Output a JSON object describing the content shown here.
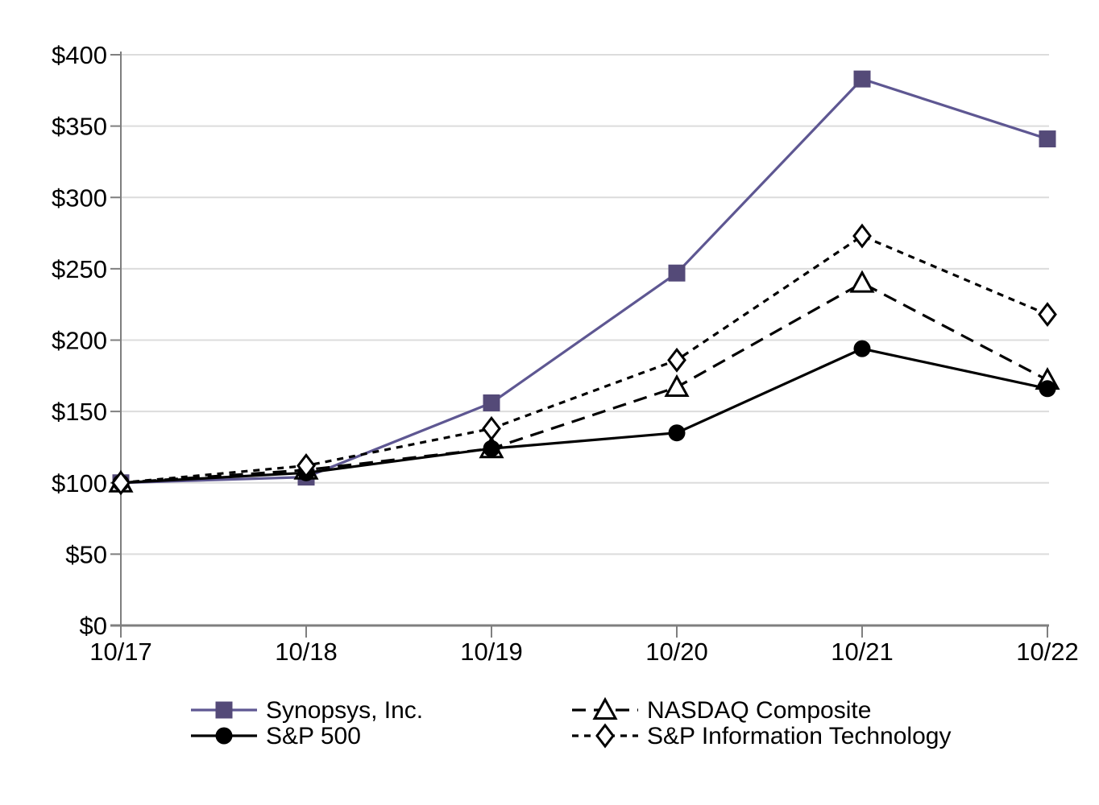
{
  "chart_data": {
    "type": "line",
    "title": "",
    "xlabel": "",
    "ylabel": "",
    "categories": [
      "10/17",
      "10/18",
      "10/19",
      "10/20",
      "10/21",
      "10/22"
    ],
    "series": [
      {
        "name": "Synopsys, Inc.",
        "values": [
          100,
          104,
          156,
          247,
          383,
          341
        ],
        "line_color": "#5e5792",
        "marker": "square",
        "marker_fill": "#544a78",
        "dash": "solid"
      },
      {
        "name": "NASDAQ Composite",
        "values": [
          100,
          109,
          124,
          167,
          240,
          172
        ],
        "line_color": "#000000",
        "marker": "triangle",
        "marker_fill": "#ffffff",
        "dash": "17 10"
      },
      {
        "name": "S&P 500",
        "values": [
          100,
          107,
          124,
          135,
          194,
          166
        ],
        "line_color": "#000000",
        "marker": "circle",
        "marker_fill": "#000000",
        "dash": "solid"
      },
      {
        "name": "S&P Information Technology",
        "values": [
          100,
          112,
          138,
          186,
          273,
          218
        ],
        "line_color": "#000000",
        "marker": "diamond",
        "marker_fill": "#ffffff",
        "dash": "8 7"
      }
    ],
    "ylim": [
      0,
      400
    ],
    "ytick_step": 50,
    "ytick_prefix": "$",
    "y_tick_labels": [
      "$0",
      "$50",
      "$100",
      "$150",
      "$200",
      "$250",
      "$300",
      "$350",
      "$400"
    ],
    "x_tick_labels": [
      "10/17",
      "10/18",
      "10/19",
      "10/20",
      "10/21",
      "10/22"
    ],
    "grid": true,
    "legend_position": "bottom",
    "legend_columns": [
      [
        "Synopsys, Inc.",
        "S&P 500"
      ],
      [
        "NASDAQ Composite",
        "S&P Information Technology"
      ]
    ],
    "colors": {
      "grid": "#dcdcdc",
      "axis": "#7f7f7f",
      "tick": "#7f7f7f",
      "text": "#000000",
      "accent_purple_line": "#5e5792",
      "accent_purple_marker": "#544a78",
      "background": "#ffffff"
    }
  }
}
